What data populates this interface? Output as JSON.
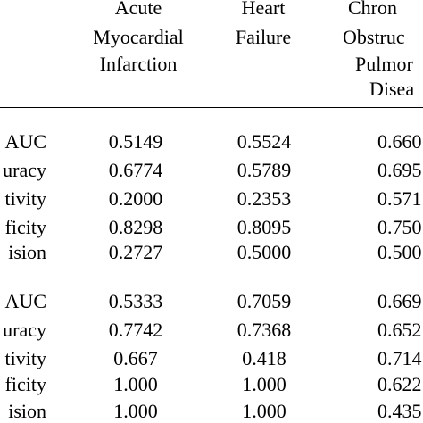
{
  "table": {
    "headers": [
      {
        "lines": [
          "Acute",
          "Myocardial",
          "Infarction"
        ]
      },
      {
        "lines": [
          "Heart",
          "Failure"
        ]
      },
      {
        "lines": [
          "Chron",
          "Obstruc",
          "Pulmor",
          "Disea"
        ]
      }
    ],
    "sections": [
      {
        "rows": [
          {
            "label": "AUC",
            "values": [
              "0.5149",
              "0.5524",
              "0.660"
            ]
          },
          {
            "label": "uracy",
            "values": [
              "0.6774",
              "0.5789",
              "0.695"
            ]
          },
          {
            "label": "tivity",
            "values": [
              "0.2000",
              "0.2353",
              "0.571"
            ]
          },
          {
            "label": "ficity",
            "values": [
              "0.8298",
              "0.8095",
              "0.750"
            ]
          },
          {
            "label": "ision",
            "values": [
              "0.2727",
              "0.5000",
              "0.500"
            ]
          }
        ]
      },
      {
        "rows": [
          {
            "label": "AUC",
            "values": [
              "0.5333",
              "0.7059",
              "0.669"
            ]
          },
          {
            "label": "uracy",
            "values": [
              "0.7742",
              "0.7368",
              "0.652"
            ]
          },
          {
            "label": "tivity",
            "values": [
              "0.667",
              "0.418",
              "0.714"
            ]
          },
          {
            "label": "ficity",
            "values": [
              "1.000",
              "1.000",
              "0.622"
            ]
          },
          {
            "label": "ision",
            "values": [
              "1.000",
              "1.000",
              "0.435"
            ]
          }
        ]
      }
    ]
  }
}
